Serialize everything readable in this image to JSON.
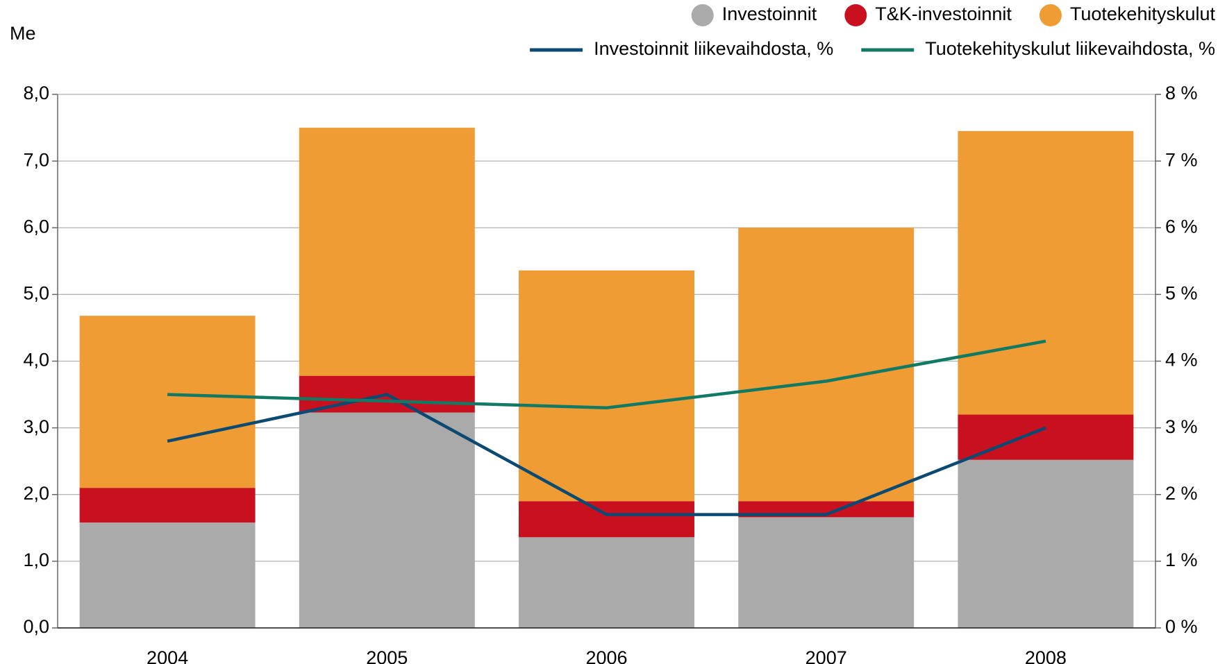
{
  "chart_data": {
    "type": "bar",
    "y_label": "Me",
    "categories": [
      "2004",
      "2005",
      "2006",
      "2007",
      "2008"
    ],
    "series": [
      {
        "name": "Investoinnit",
        "color": "#aaaaaa",
        "type": "bar",
        "values": [
          1.58,
          3.23,
          1.36,
          1.66,
          2.52
        ]
      },
      {
        "name": "T&K-investoinnit",
        "color": "#c8101e",
        "type": "bar",
        "values": [
          0.52,
          0.55,
          0.54,
          0.24,
          0.68
        ]
      },
      {
        "name": "Tuotekehityskulut",
        "color": "#ee9c33",
        "type": "bar",
        "values": [
          2.58,
          3.72,
          3.46,
          4.1,
          4.25
        ]
      },
      {
        "name": "Investoinnit liikevaihdosta, %",
        "color": "#0b4a72",
        "type": "line",
        "axis": "y2",
        "values": [
          2.8,
          3.5,
          1.7,
          1.7,
          3.0
        ]
      },
      {
        "name": "Tuotekehityskulut liikevaihdosta, %",
        "color": "#117a65",
        "type": "line",
        "axis": "y2",
        "values": [
          3.5,
          3.4,
          3.3,
          3.7,
          4.3
        ]
      }
    ],
    "stacked": true,
    "ylim": [
      0,
      8
    ],
    "yticks": [
      {
        "value": 0,
        "label": "0,0"
      },
      {
        "value": 1,
        "label": "1,0"
      },
      {
        "value": 2,
        "label": "2,0"
      },
      {
        "value": 3,
        "label": "3,0"
      },
      {
        "value": 4,
        "label": "4,0"
      },
      {
        "value": 5,
        "label": "5,0"
      },
      {
        "value": 6,
        "label": "6,0"
      },
      {
        "value": 7,
        "label": "7,0"
      },
      {
        "value": 8,
        "label": "8,0"
      }
    ],
    "y2lim": [
      0,
      8
    ],
    "y2ticks": [
      {
        "value": 0,
        "label": "0 %"
      },
      {
        "value": 1,
        "label": "1 %"
      },
      {
        "value": 2,
        "label": "2 %"
      },
      {
        "value": 3,
        "label": "3 %"
      },
      {
        "value": 4,
        "label": "4 %"
      },
      {
        "value": 5,
        "label": "5 %"
      },
      {
        "value": 6,
        "label": "6 %"
      },
      {
        "value": 7,
        "label": "7 %"
      },
      {
        "value": 8,
        "label": "8 %"
      }
    ],
    "grid": true,
    "legend": "top-right"
  }
}
